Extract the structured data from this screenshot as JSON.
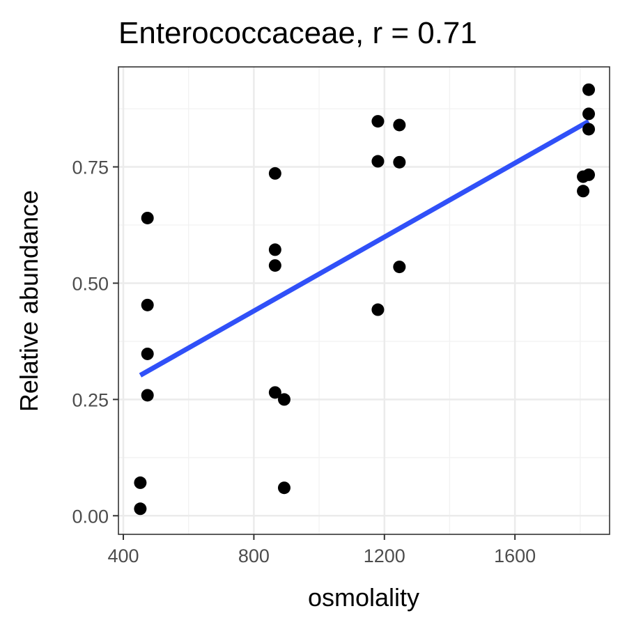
{
  "chart_data": {
    "type": "scatter",
    "title": "Enterococcaceae, r = 0.71",
    "xlabel": "osmolality",
    "ylabel": "Relative abundance",
    "xlim": [
      385,
      1890
    ],
    "ylim": [
      -0.04,
      0.965
    ],
    "xticks": [
      400,
      800,
      1200,
      1600
    ],
    "xtick_labels": [
      "400",
      "800",
      "1200",
      "1600"
    ],
    "yticks": [
      0.0,
      0.25,
      0.5,
      0.75
    ],
    "ytick_labels": [
      "0.00",
      "0.25",
      "0.50",
      "0.75"
    ],
    "x_minor": [
      600,
      1000,
      1400,
      1800
    ],
    "y_minor": [
      0.125,
      0.375,
      0.625,
      0.875
    ],
    "grid": true,
    "points": [
      {
        "x": 452,
        "y": 0.015
      },
      {
        "x": 452,
        "y": 0.071
      },
      {
        "x": 474,
        "y": 0.259
      },
      {
        "x": 474,
        "y": 0.348
      },
      {
        "x": 474,
        "y": 0.453
      },
      {
        "x": 474,
        "y": 0.64
      },
      {
        "x": 865,
        "y": 0.265
      },
      {
        "x": 865,
        "y": 0.538
      },
      {
        "x": 865,
        "y": 0.572
      },
      {
        "x": 865,
        "y": 0.736
      },
      {
        "x": 893,
        "y": 0.06
      },
      {
        "x": 893,
        "y": 0.25
      },
      {
        "x": 1180,
        "y": 0.443
      },
      {
        "x": 1180,
        "y": 0.762
      },
      {
        "x": 1180,
        "y": 0.848
      },
      {
        "x": 1246,
        "y": 0.535
      },
      {
        "x": 1246,
        "y": 0.76
      },
      {
        "x": 1246,
        "y": 0.84
      },
      {
        "x": 1809,
        "y": 0.698
      },
      {
        "x": 1809,
        "y": 0.729
      },
      {
        "x": 1826,
        "y": 0.733
      },
      {
        "x": 1826,
        "y": 0.831
      },
      {
        "x": 1826,
        "y": 0.864
      },
      {
        "x": 1826,
        "y": 0.916
      }
    ],
    "fit_line": {
      "x": [
        452,
        1826
      ],
      "y": [
        0.302,
        0.848
      ],
      "color": "#3050f8"
    },
    "point_color": "#000000"
  }
}
